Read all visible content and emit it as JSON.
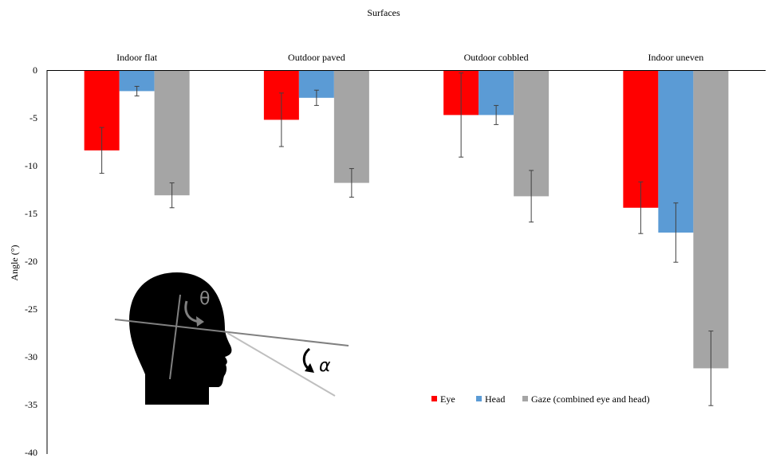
{
  "chart_data": {
    "type": "bar",
    "title": "Surfaces",
    "ylabel": "Angle  (°)",
    "xlabel": "",
    "ylim": [
      -40,
      0
    ],
    "yticks": [
      0,
      -5,
      -10,
      -15,
      -20,
      -25,
      -30,
      -35,
      -40
    ],
    "categories": [
      "Indoor flat",
      "Outdoor paved",
      "Outdoor cobbled",
      "Indoor uneven"
    ],
    "series": [
      {
        "name": "Eye",
        "color": "#ff0000",
        "values": [
          -8.4,
          -5.2,
          -4.7,
          -14.4
        ],
        "errors": [
          2.4,
          2.8,
          4.4,
          2.7
        ]
      },
      {
        "name": "Head",
        "color": "#5b9bd5",
        "values": [
          -2.2,
          -2.9,
          -4.7,
          -17.0
        ],
        "errors": [
          0.5,
          0.8,
          1.0,
          3.1
        ]
      },
      {
        "name": "Gaze (combined eye and head)",
        "color": "#a5a5a5",
        "values": [
          -13.1,
          -11.8,
          -13.2,
          -31.2
        ],
        "errors": [
          1.3,
          1.5,
          2.7,
          3.9
        ]
      }
    ],
    "grid": false,
    "legend_position": "bottom-right",
    "inset": {
      "icon": "head-profile-icon",
      "theta_label": "θ",
      "alpha_label": "α"
    }
  }
}
